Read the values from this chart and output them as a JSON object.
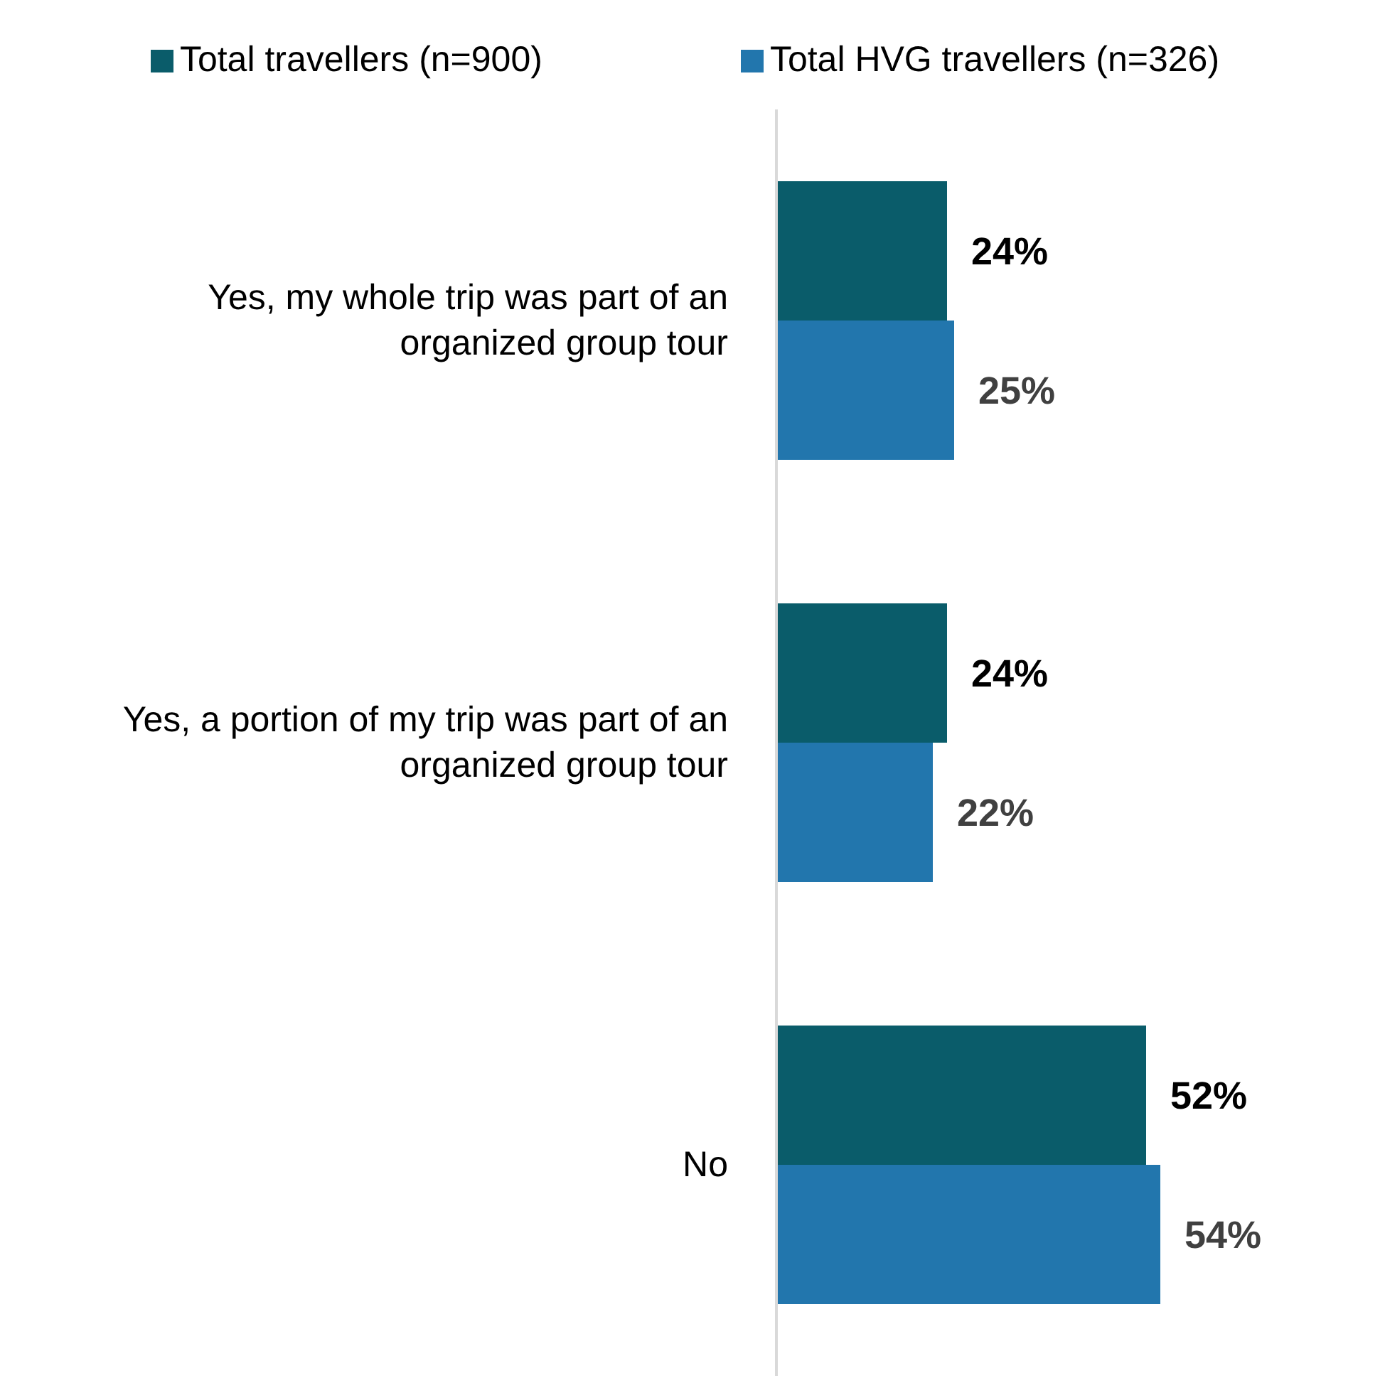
{
  "chart_data": {
    "type": "bar",
    "orientation": "horizontal",
    "categories": [
      "Yes, my whole trip was part of an organized group tour",
      "Yes, a portion of my trip was part of an organized group tour",
      "No"
    ],
    "series": [
      {
        "name": "Total travellers (n=900)",
        "color": "#0a5c6a",
        "values": [
          24,
          24,
          52
        ],
        "value_labels": [
          "24%",
          "24%",
          "52%"
        ]
      },
      {
        "name": "Total HVG travellers (n=326)",
        "color": "#2276ad",
        "values": [
          25,
          22,
          54
        ],
        "value_labels": [
          "25%",
          "22%",
          "54%"
        ]
      }
    ],
    "legend": "top"
  }
}
